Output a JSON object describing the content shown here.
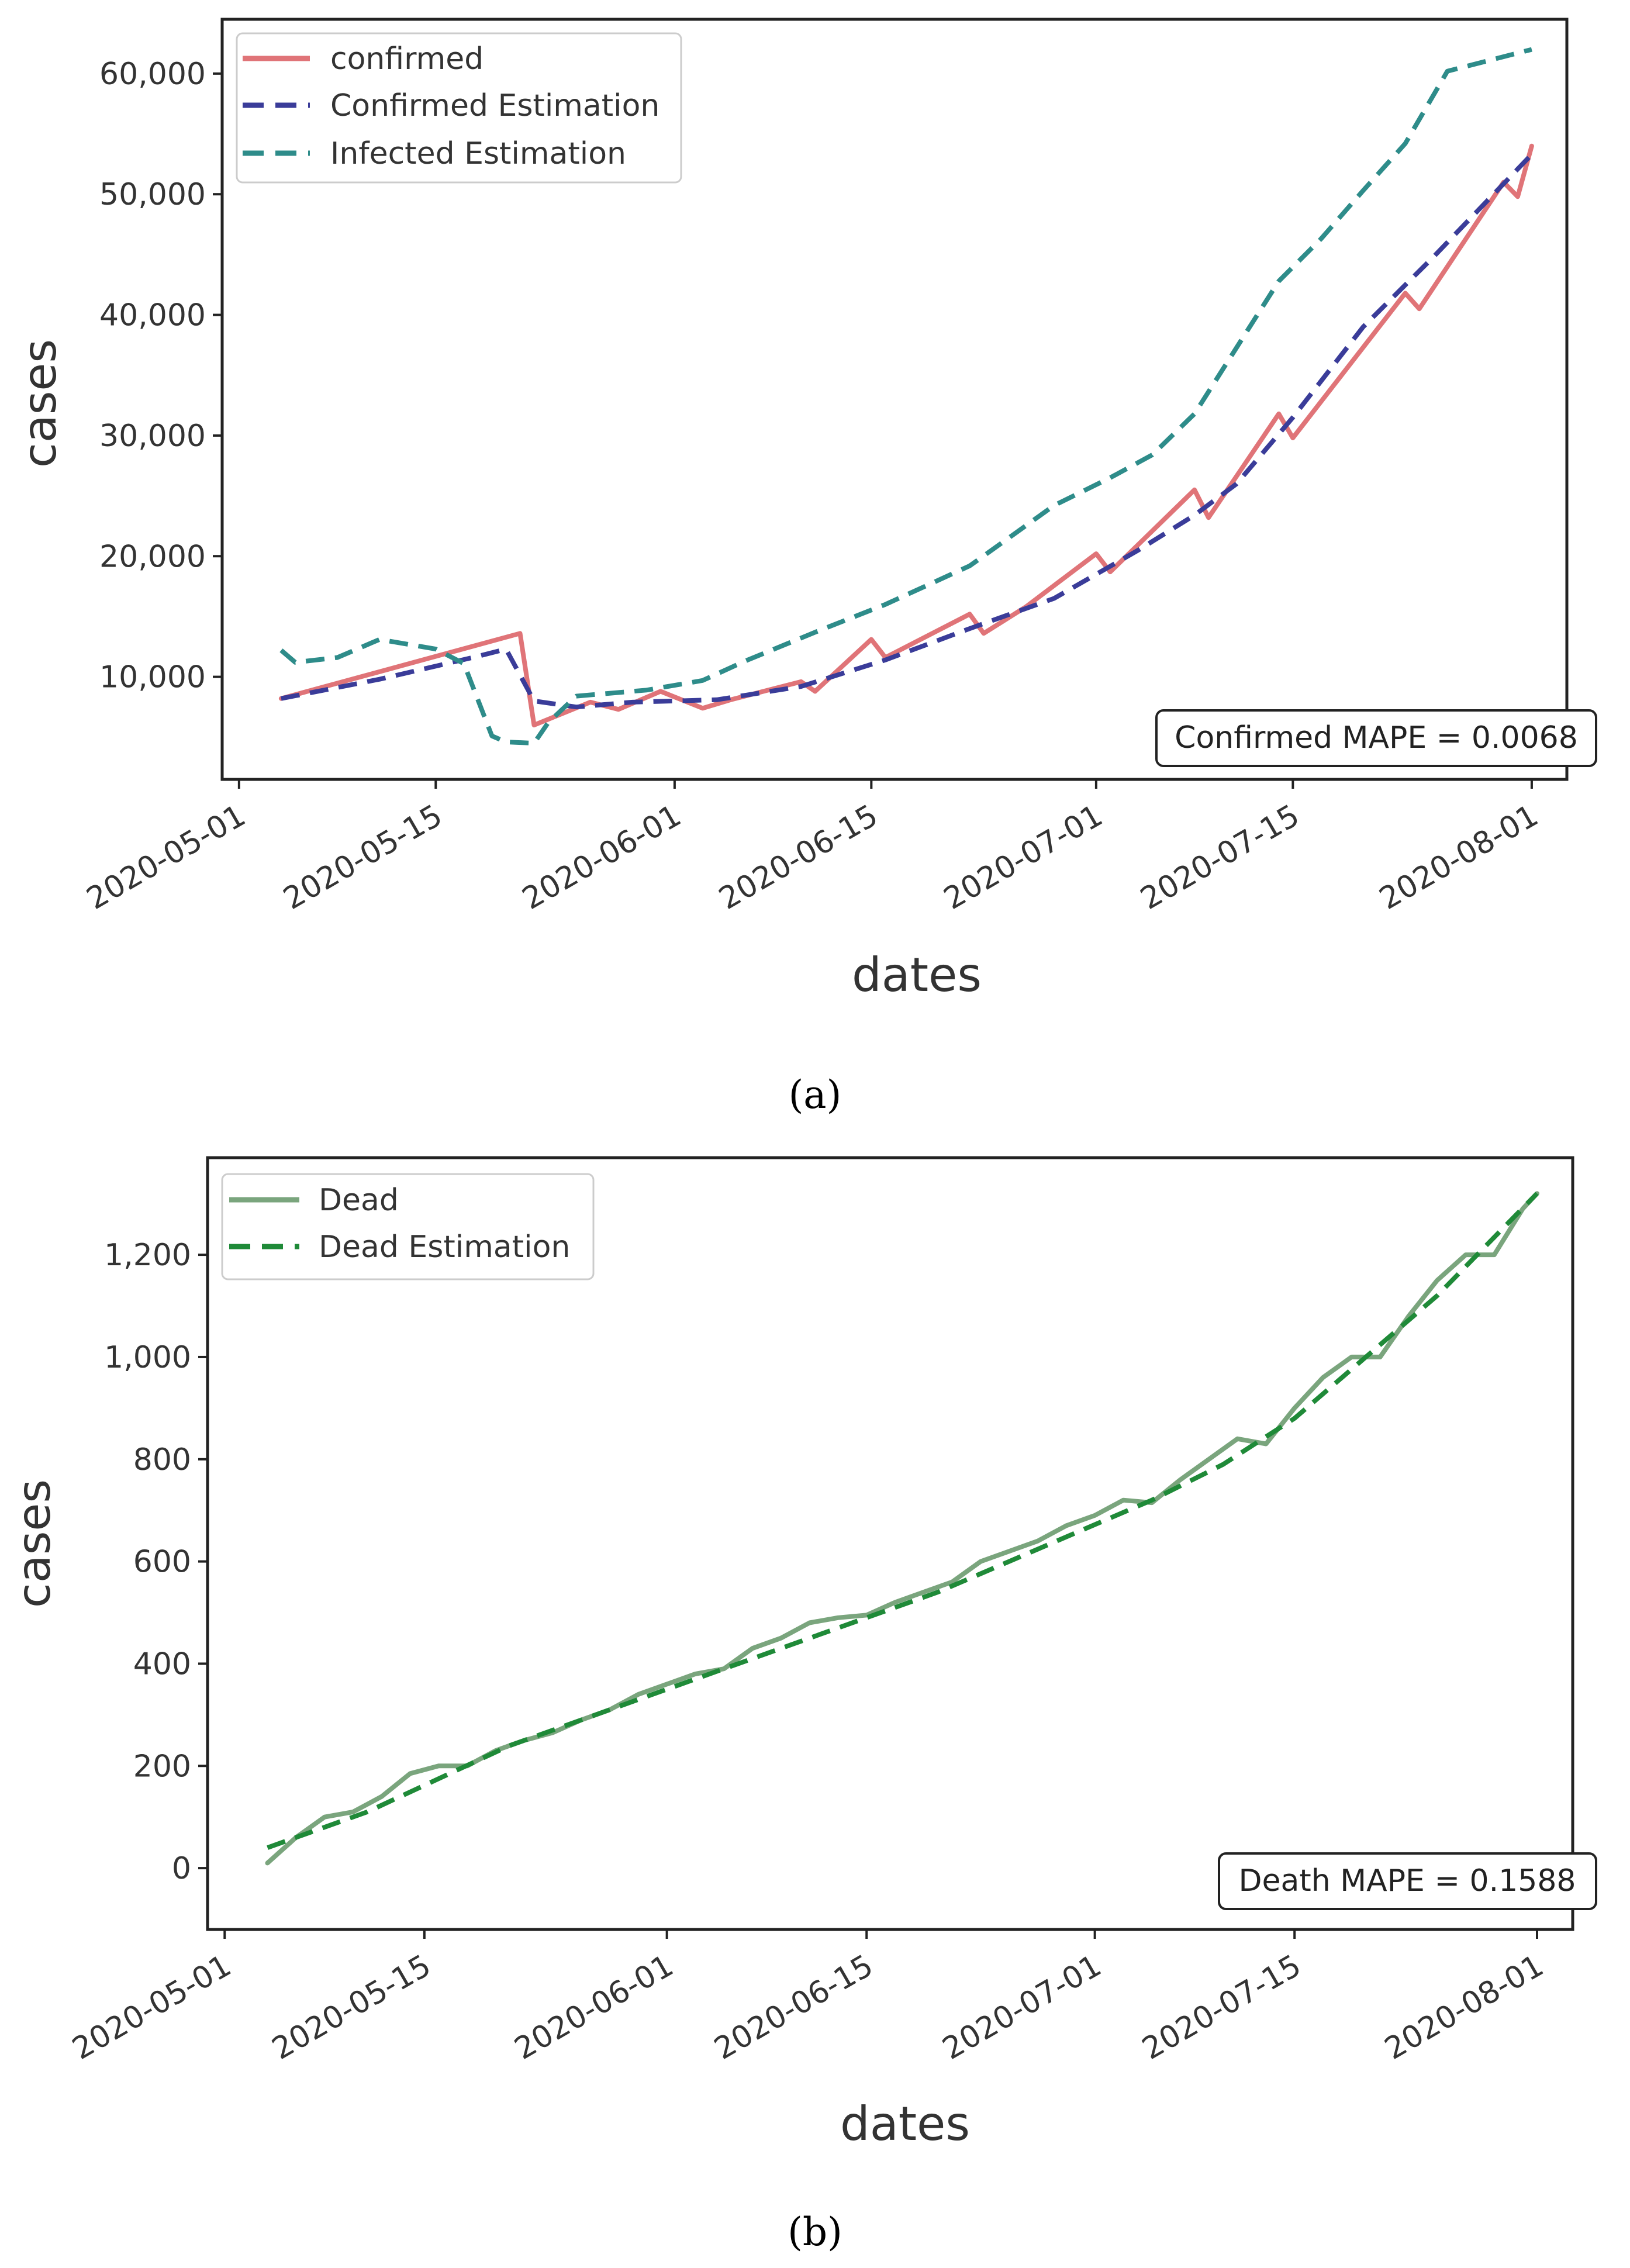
{
  "chart_data": [
    {
      "id": "a",
      "type": "line",
      "panel_label": "(a)",
      "xlabel": "dates",
      "ylabel": "cases",
      "x_ticks": [
        "2020-05-01",
        "2020-05-15",
        "2020-06-01",
        "2020-06-15",
        "2020-07-01",
        "2020-07-15",
        "2020-08-01"
      ],
      "x_tick_days": [
        0,
        14,
        31,
        45,
        61,
        75,
        92
      ],
      "xlim_days": [
        -1.2,
        94.5
      ],
      "y_ticks": [
        10000,
        20000,
        30000,
        40000,
        50000,
        60000
      ],
      "y_tick_labels": [
        "10,000",
        "20,000",
        "30,000",
        "40,000",
        "50,000",
        "60,000"
      ],
      "ylim": [
        1500,
        64500
      ],
      "grid": false,
      "legend_position": "top-left",
      "annotation": "Confirmed MAPE = 0.0068",
      "annotation_position": "bottom-right",
      "series": [
        {
          "name": "confirmed",
          "color": "#e07478",
          "dash": "solid",
          "x_days": [
            3,
            20,
            21,
            25,
            27,
            30,
            33,
            35,
            40,
            41,
            45,
            46,
            52,
            53,
            56,
            61,
            62,
            68,
            69,
            74,
            75,
            83,
            84,
            90,
            91,
            92
          ],
          "y": [
            8200,
            13600,
            6000,
            7900,
            7300,
            8800,
            7400,
            8100,
            9600,
            8800,
            13100,
            11600,
            15200,
            13600,
            15800,
            20200,
            18700,
            25500,
            23200,
            31800,
            29800,
            41800,
            40500,
            51000,
            49800,
            54000
          ]
        },
        {
          "name": "Confirmed Estimation",
          "color": "#3a3c99",
          "dash": "dashed",
          "x_days": [
            3,
            10,
            17,
            19,
            21,
            24,
            28,
            34,
            40,
            46,
            52,
            58,
            64,
            68,
            71,
            75,
            80,
            85,
            92
          ],
          "y": [
            8200,
            9800,
            11700,
            12300,
            8000,
            7500,
            7900,
            8100,
            9200,
            11400,
            14000,
            16500,
            20500,
            23400,
            26000,
            31500,
            39000,
            44800,
            53300
          ]
        },
        {
          "name": "Infected Estimation",
          "color": "#2e8c8a",
          "dash": "dashed",
          "x_days": [
            3,
            4,
            7,
            10,
            14,
            16,
            18,
            19,
            21,
            22,
            24,
            29,
            33,
            36,
            41,
            46,
            52,
            55,
            58,
            62,
            65,
            68,
            71,
            74,
            77,
            80,
            83,
            86,
            89,
            92
          ],
          "y": [
            12200,
            11200,
            11600,
            13100,
            12300,
            11100,
            5100,
            4600,
            4500,
            6200,
            8400,
            8900,
            9700,
            11300,
            13700,
            16000,
            19200,
            21700,
            24200,
            26500,
            28400,
            31800,
            37300,
            42800,
            46300,
            50300,
            54200,
            60200,
            61100,
            62000
          ]
        }
      ]
    },
    {
      "id": "b",
      "type": "line",
      "panel_label": "(b)",
      "xlabel": "dates",
      "ylabel": "cases",
      "x_ticks": [
        "2020-05-01",
        "2020-05-15",
        "2020-06-01",
        "2020-06-15",
        "2020-07-01",
        "2020-07-15",
        "2020-08-01"
      ],
      "x_tick_days": [
        0,
        14,
        31,
        45,
        61,
        75,
        92
      ],
      "xlim_days": [
        -1.2,
        94.5
      ],
      "y_ticks": [
        0,
        200,
        400,
        600,
        800,
        1000,
        1200
      ],
      "y_tick_labels": [
        "0",
        "200",
        "400",
        "600",
        "800",
        "1,000",
        "1,200"
      ],
      "ylim": [
        -120,
        1390
      ],
      "grid": false,
      "legend_position": "top-left",
      "annotation": "Death MAPE = 0.1588",
      "annotation_position": "bottom-right",
      "series": [
        {
          "name": "Dead",
          "color": "#7aa57d",
          "dash": "solid",
          "x_days": [
            3,
            5,
            7,
            9,
            11,
            13,
            15,
            17,
            19,
            21,
            23,
            25,
            27,
            29,
            31,
            33,
            35,
            37,
            39,
            41,
            43,
            45,
            47,
            49,
            51,
            53,
            55,
            57,
            59,
            61,
            63,
            65,
            67,
            69,
            71,
            73,
            75,
            77,
            79,
            81,
            83,
            85,
            87,
            89,
            91,
            92
          ],
          "y": [
            10,
            60,
            100,
            110,
            140,
            185,
            200,
            200,
            230,
            250,
            265,
            290,
            310,
            340,
            360,
            380,
            390,
            430,
            450,
            480,
            490,
            495,
            520,
            540,
            560,
            600,
            620,
            640,
            670,
            690,
            720,
            715,
            760,
            800,
            840,
            830,
            900,
            960,
            1000,
            1000,
            1080,
            1150,
            1200,
            1200,
            1290,
            1320
          ]
        },
        {
          "name": "Dead Estimation",
          "color": "#1f8a38",
          "dash": "dashed",
          "x_days": [
            3,
            10,
            20,
            30,
            40,
            50,
            60,
            65,
            70,
            75,
            80,
            85,
            92
          ],
          "y": [
            40,
            110,
            240,
            340,
            440,
            540,
            660,
            720,
            790,
            880,
            1000,
            1120,
            1320
          ]
        }
      ]
    }
  ]
}
